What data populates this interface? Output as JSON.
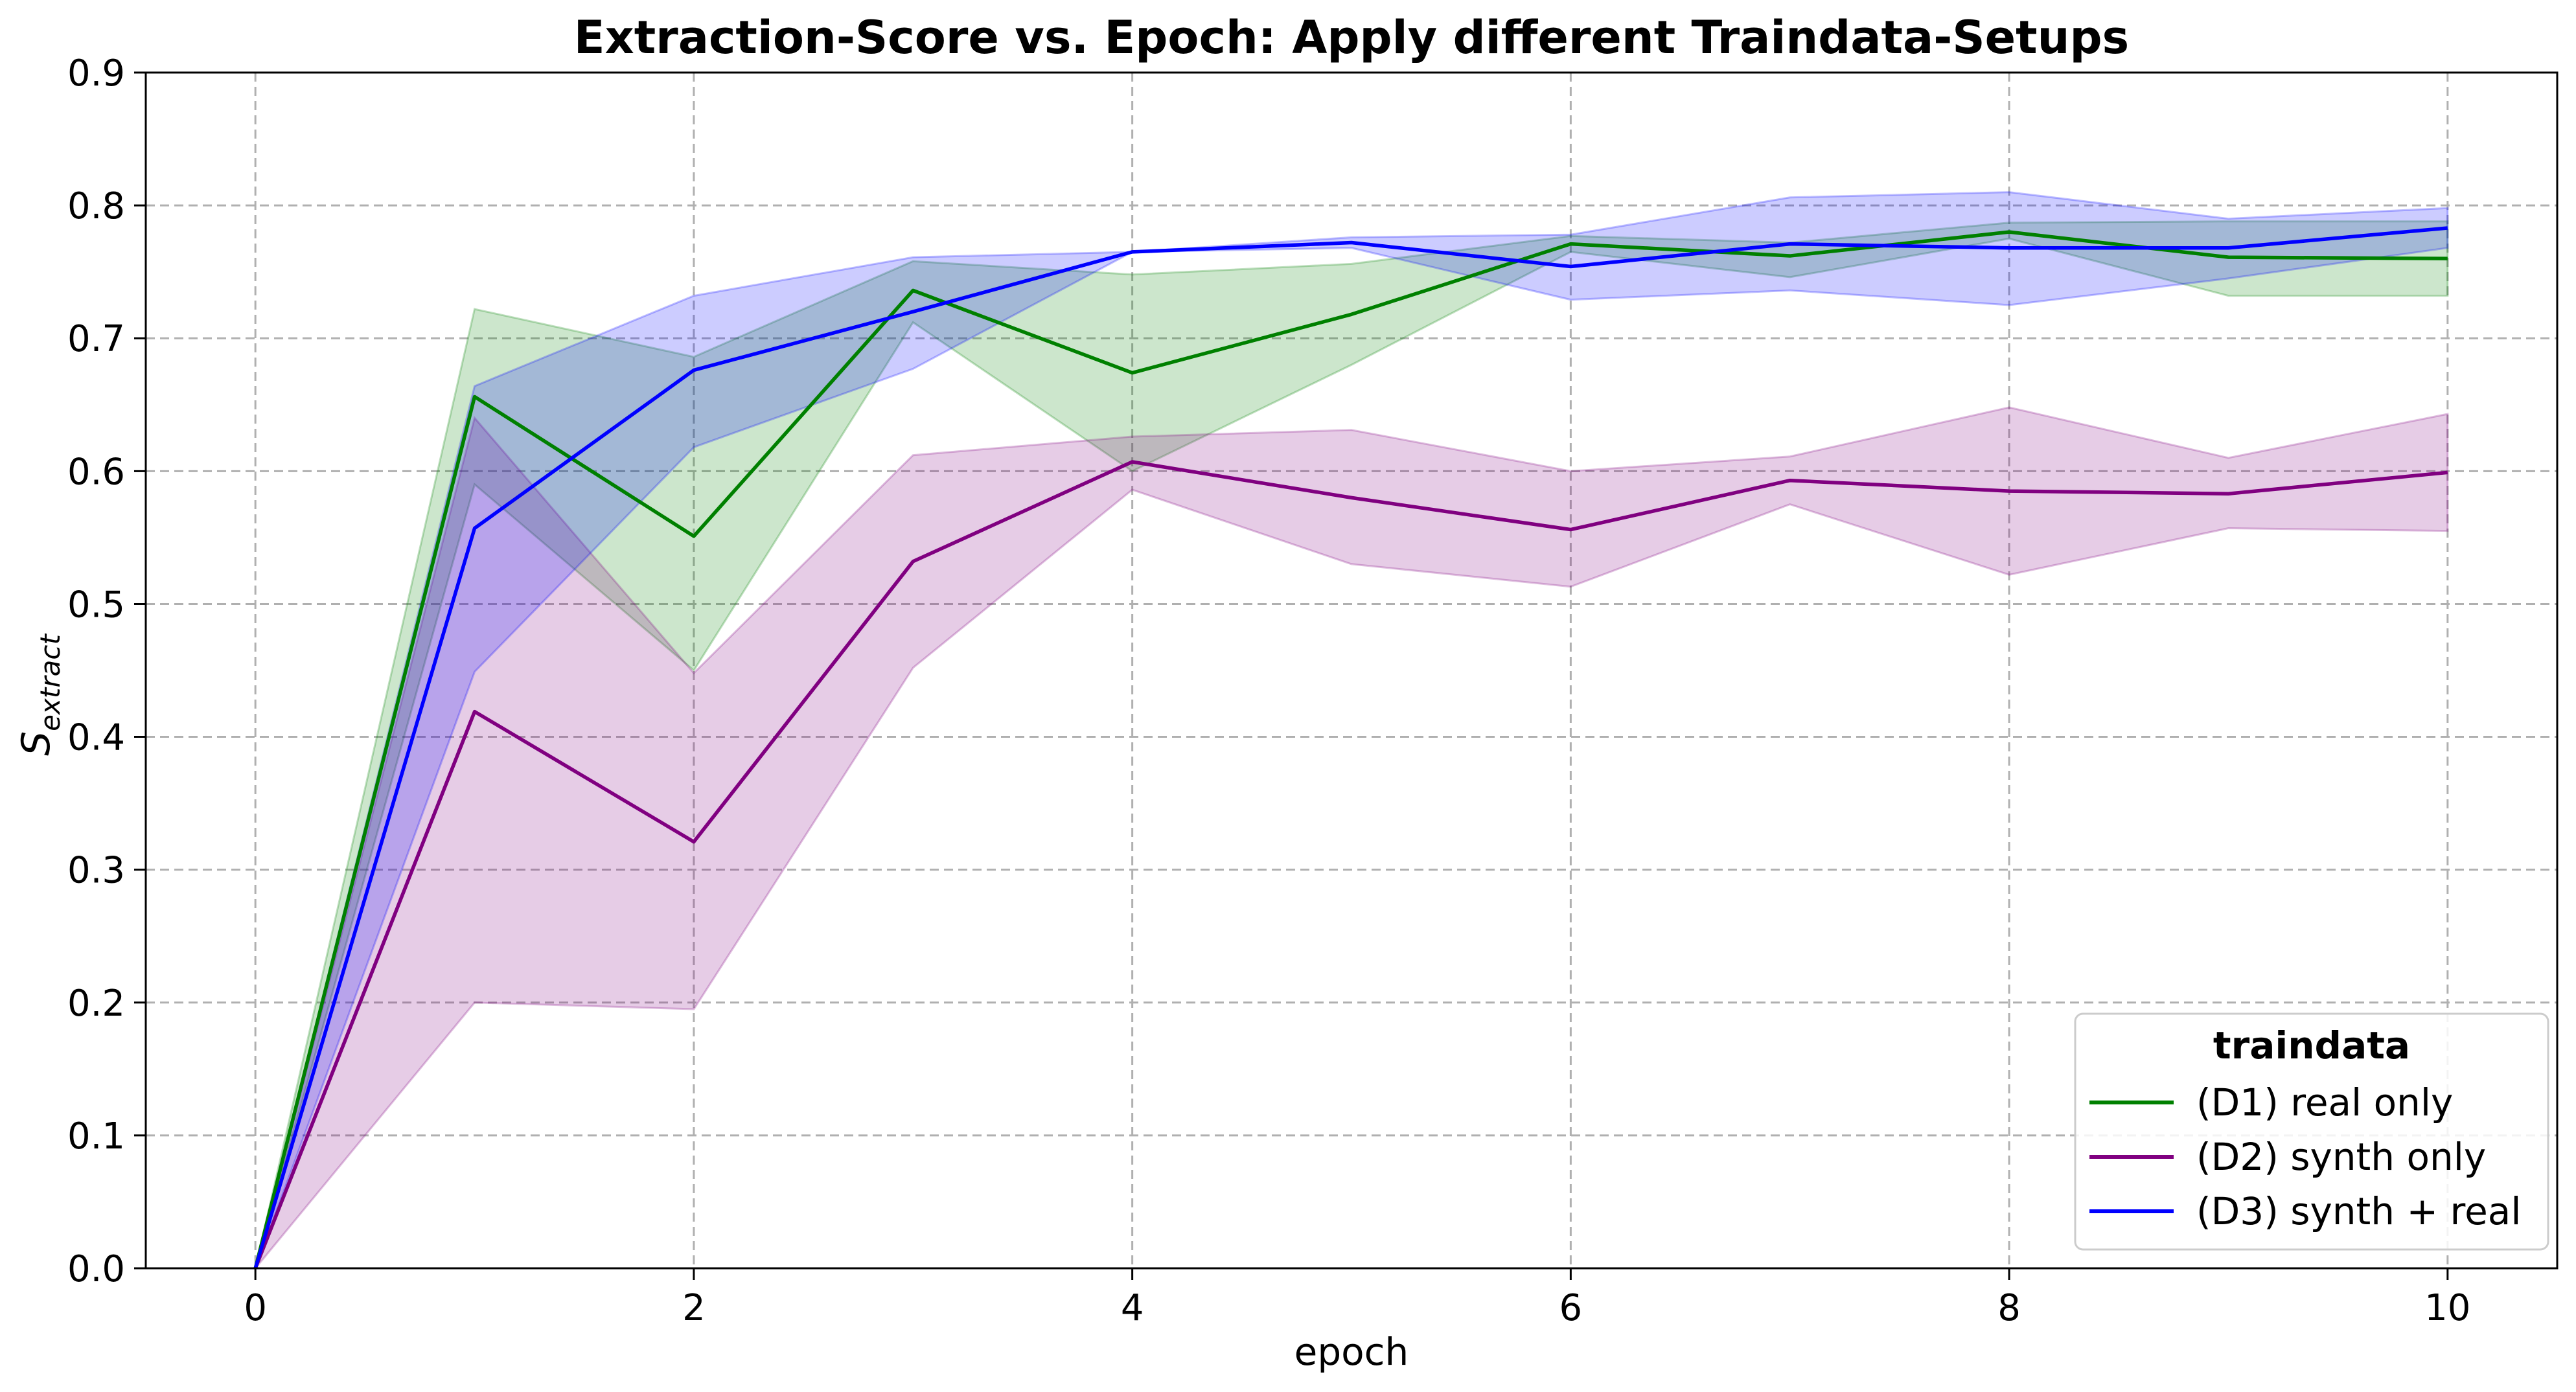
{
  "chart_data": {
    "type": "line",
    "title": "Extraction-Score vs. Epoch: Apply different Traindata-Setups",
    "xlabel": "epoch",
    "ylabel": {
      "main": "S",
      "sub": "extract"
    },
    "xlim": [
      -0.5,
      10.5
    ],
    "ylim": [
      0,
      0.9
    ],
    "xticks": [
      0,
      2,
      4,
      6,
      8,
      10
    ],
    "yticks": [
      0.0,
      0.1,
      0.2,
      0.3,
      0.4,
      0.5,
      0.6,
      0.7,
      0.8,
      0.9
    ],
    "ytick_labels": [
      "0.0",
      "0.1",
      "0.2",
      "0.3",
      "0.4",
      "0.5",
      "0.6",
      "0.7",
      "0.8",
      "0.9"
    ],
    "grid": true,
    "legend": {
      "title": "traindata",
      "placement": "bottom-right"
    },
    "x": [
      0,
      1,
      2,
      3,
      4,
      5,
      6,
      7,
      8,
      9,
      10
    ],
    "series": [
      {
        "name": "(D1) real only",
        "color": "#008000",
        "values": [
          0.0,
          0.656,
          0.551,
          0.736,
          0.674,
          0.718,
          0.771,
          0.762,
          0.78,
          0.761,
          0.76
        ],
        "lower": [
          0.0,
          0.59,
          0.45,
          0.712,
          0.6,
          0.68,
          0.765,
          0.746,
          0.775,
          0.732,
          0.732
        ],
        "upper": [
          0.0,
          0.722,
          0.686,
          0.758,
          0.748,
          0.756,
          0.777,
          0.772,
          0.787,
          0.788,
          0.788
        ]
      },
      {
        "name": "(D2) synth only",
        "color": "#800080",
        "values": [
          0.0,
          0.419,
          0.321,
          0.532,
          0.607,
          0.58,
          0.556,
          0.593,
          0.585,
          0.583,
          0.599
        ],
        "lower": [
          0.0,
          0.2,
          0.195,
          0.452,
          0.586,
          0.53,
          0.513,
          0.575,
          0.522,
          0.557,
          0.555
        ],
        "upper": [
          0.0,
          0.64,
          0.448,
          0.612,
          0.626,
          0.631,
          0.6,
          0.611,
          0.648,
          0.61,
          0.643
        ]
      },
      {
        "name": "(D3) synth + real",
        "color": "#0000ff",
        "values": [
          0.0,
          0.557,
          0.676,
          0.72,
          0.765,
          0.772,
          0.754,
          0.771,
          0.768,
          0.768,
          0.783
        ],
        "lower": [
          0.0,
          0.449,
          0.618,
          0.677,
          0.765,
          0.768,
          0.729,
          0.736,
          0.725,
          0.745,
          0.768
        ],
        "upper": [
          0.0,
          0.664,
          0.732,
          0.761,
          0.765,
          0.776,
          0.778,
          0.806,
          0.81,
          0.79,
          0.798
        ]
      }
    ]
  }
}
